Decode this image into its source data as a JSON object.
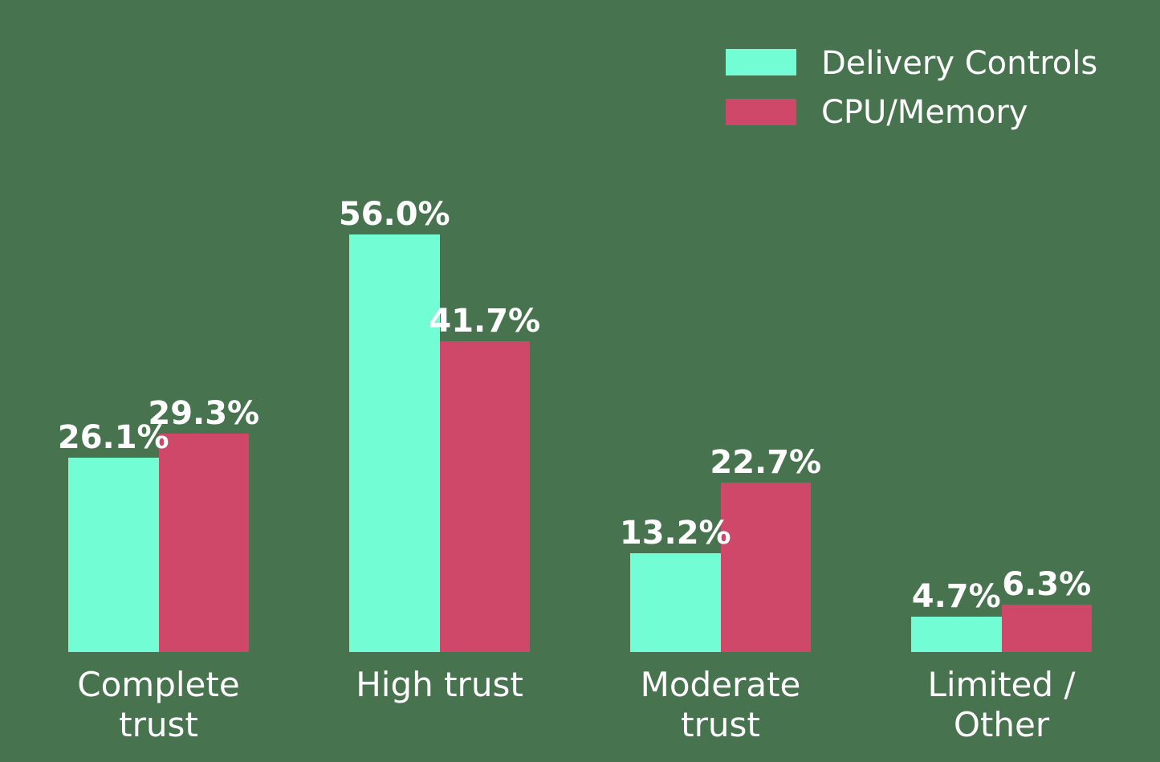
{
  "chart_data": {
    "type": "bar",
    "title": "",
    "xlabel": "",
    "ylabel": "",
    "categories": [
      "Complete\ntrust",
      "High trust",
      "Moderate\ntrust",
      "Limited /\nOther"
    ],
    "category_lines": [
      [
        "Complete",
        "trust"
      ],
      [
        "High trust"
      ],
      [
        "Moderate",
        "trust"
      ],
      [
        "Limited /",
        "Other"
      ]
    ],
    "series": [
      {
        "name": "Delivery Controls",
        "color": "#73fdd4",
        "values": [
          26.1,
          56.0,
          13.2,
          4.7
        ],
        "labels": [
          "26.1%",
          "56.0%",
          "13.2%",
          "4.7%"
        ]
      },
      {
        "name": "CPU/Memory",
        "color": "#cf4869",
        "values": [
          29.3,
          41.7,
          22.7,
          6.3
        ],
        "labels": [
          "29.3%",
          "41.7%",
          "22.7%",
          "6.3%"
        ]
      }
    ],
    "ylim": [
      0,
      60
    ],
    "grid": false,
    "legend_position": "upper right",
    "value_format": "percent, 1 decimal"
  },
  "legend": {
    "items": [
      {
        "label": "Delivery Controls",
        "color": "#73fdd4"
      },
      {
        "label": "CPU/Memory",
        "color": "#cf4869"
      }
    ]
  }
}
